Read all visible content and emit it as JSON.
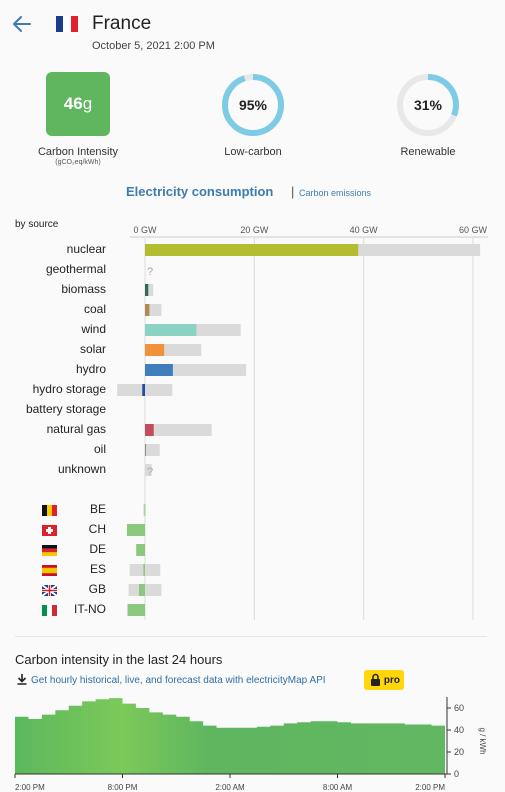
{
  "header": {
    "country": "France",
    "datetime": "October 5, 2021 2:00 PM",
    "flag_colors": [
      "#1e3c8c",
      "#ffffff",
      "#e0202a"
    ]
  },
  "metrics": {
    "carbon_intensity": {
      "value": "46",
      "unit_suffix": "g",
      "label": "Carbon Intensity",
      "unit": "(gCO₂eq/kWh)",
      "color": "#5fb65f"
    },
    "low_carbon": {
      "value": "95%",
      "label": "Low-carbon",
      "fraction": 0.95,
      "color": "#7ecbe6"
    },
    "renewable": {
      "value": "31%",
      "label": "Renewable",
      "fraction": 0.31,
      "color": "#7ecbe6"
    }
  },
  "tabs": {
    "active": "Electricity consumption",
    "separator": "|",
    "inactive": "Carbon emissions"
  },
  "breakdown": {
    "by_source_label": "by source",
    "axis_ticks": [
      "0 GW",
      "20 GW",
      "40 GW",
      "60 GW"
    ],
    "axis_max_gw": 60,
    "sources": [
      {
        "name": "nuclear",
        "value": 39,
        "capacity": 61.3,
        "color": "#b3bd2f"
      },
      {
        "name": "geothermal",
        "value": null,
        "capacity": null,
        "unknown": "?"
      },
      {
        "name": "biomass",
        "value": 0.6,
        "capacity": 1.5,
        "color": "#2d6e50"
      },
      {
        "name": "coal",
        "value": 0.8,
        "capacity": 3.0,
        "color": "#b08a52"
      },
      {
        "name": "wind",
        "value": 9.4,
        "capacity": 17.5,
        "color": "#8ad2c2"
      },
      {
        "name": "solar",
        "value": 3.5,
        "capacity": 10.3,
        "color": "#f0923b"
      },
      {
        "name": "hydro",
        "value": 5.1,
        "capacity": 18.5,
        "color": "#3f7ebb"
      },
      {
        "name": "hydro storage",
        "value": -0.5,
        "capacity": 5.0,
        "capacity_neg": -5.1,
        "color": "#1f4f9c"
      },
      {
        "name": "battery storage",
        "value": null,
        "capacity": null
      },
      {
        "name": "natural gas",
        "value": 1.6,
        "capacity": 12.2,
        "color": "#c44d5c"
      },
      {
        "name": "oil",
        "value": 0.05,
        "capacity": 2.7,
        "color": "#888888"
      },
      {
        "name": "unknown",
        "value": null,
        "capacity": 1.2,
        "unknown": "?"
      }
    ],
    "exchanges": [
      {
        "code": "BE",
        "value": -0.1,
        "capacity_neg": -0.3,
        "capacity_pos": 0
      },
      {
        "code": "CH",
        "value": -3.3,
        "capacity_neg": -3.3,
        "capacity_pos": 0
      },
      {
        "code": "DE",
        "value": -1.6,
        "capacity_neg": -1.6,
        "capacity_pos": 0
      },
      {
        "code": "ES",
        "value": -0.3,
        "capacity_neg": -2.8,
        "capacity_pos": 2.8
      },
      {
        "code": "GB",
        "value": -1.1,
        "capacity_neg": -3.0,
        "capacity_pos": 3.0
      },
      {
        "code": "IT-NO",
        "value": -3.2,
        "capacity_neg": -3.2,
        "capacity_pos": 0
      }
    ],
    "exchange_color": "#8cc97f"
  },
  "history": {
    "title": "Carbon intensity in the last 24 hours",
    "download_text": "Get hourly historical, live, and forecast data with electricityMap API",
    "pro_label": "pro",
    "y_ticks": [
      "60",
      "40",
      "20",
      "0"
    ],
    "y_label": "g / kWh",
    "y_max": 70,
    "x_ticks": [
      "2:00 PM",
      "8:00 PM",
      "2:00 AM",
      "8:00 AM",
      "2:00 PM"
    ],
    "values": [
      52,
      50,
      54,
      58,
      62,
      66,
      68,
      69,
      64,
      60,
      56,
      54,
      52,
      48,
      44,
      42,
      42,
      42,
      43,
      44,
      46,
      47,
      48,
      48,
      47,
      46,
      46,
      46,
      46,
      45,
      45,
      44
    ]
  }
}
